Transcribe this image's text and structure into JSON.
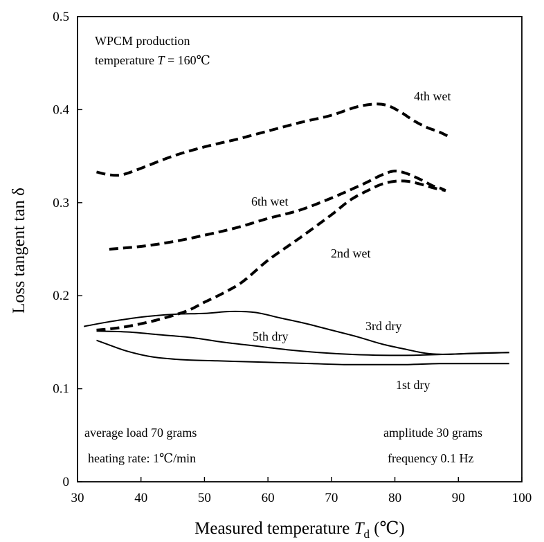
{
  "chart_data": {
    "type": "line",
    "xlabel": "Measured temperature",
    "xlabel_symbol": "T",
    "xlabel_subscript": "d",
    "xlabel_unit": "(℃)",
    "ylabel": "Loss tangent tan δ",
    "xlim": [
      30,
      100
    ],
    "ylim": [
      0,
      0.5
    ],
    "x_ticks": [
      "30",
      "40",
      "50",
      "60",
      "70",
      "80",
      "90",
      "100"
    ],
    "y_ticks": [
      "0",
      "0.1",
      "0.2",
      "0.3",
      "0.4",
      "0.5"
    ],
    "grid": false,
    "annotations": {
      "production_line1": "WPCM production",
      "production_line2_prefix": "temperature ",
      "production_line2_symbol": "T",
      "production_line2_suffix": " = 160℃",
      "load": "average load 70 grams",
      "heating": "heating rate: 1℃/min",
      "amplitude": "amplitude 30 grams",
      "frequency": "frequency 0.1 Hz"
    },
    "series": [
      {
        "name": "4th wet",
        "style": "dashed",
        "x": [
          33,
          35,
          37,
          40,
          45,
          50,
          55,
          60,
          65,
          70,
          74,
          77,
          79,
          81,
          83,
          85,
          87,
          88.5
        ],
        "y": [
          0.333,
          0.33,
          0.33,
          0.337,
          0.35,
          0.36,
          0.368,
          0.377,
          0.386,
          0.394,
          0.403,
          0.406,
          0.404,
          0.397,
          0.388,
          0.381,
          0.376,
          0.371
        ]
      },
      {
        "name": "6th wet",
        "style": "dashed",
        "x": [
          35,
          40,
          45,
          50,
          55,
          60,
          65,
          70,
          75,
          78,
          80,
          82,
          84,
          86,
          87,
          88
        ],
        "y": [
          0.25,
          0.253,
          0.258,
          0.265,
          0.273,
          0.283,
          0.292,
          0.305,
          0.32,
          0.33,
          0.334,
          0.331,
          0.325,
          0.318,
          0.316,
          0.313
        ]
      },
      {
        "name": "2nd wet",
        "style": "dashed",
        "x": [
          33,
          37,
          42,
          47,
          50,
          53,
          56,
          60,
          65,
          70,
          73,
          76,
          78,
          80,
          82,
          84,
          86,
          88
        ],
        "y": [
          0.163,
          0.166,
          0.173,
          0.183,
          0.193,
          0.203,
          0.215,
          0.238,
          0.262,
          0.287,
          0.303,
          0.314,
          0.32,
          0.323,
          0.323,
          0.32,
          0.316,
          0.313
        ]
      },
      {
        "name": "3rd dry",
        "style": "solid",
        "x": [
          31,
          35,
          40,
          45,
          50,
          54,
          58,
          62,
          66,
          70,
          74,
          78,
          82,
          85,
          88,
          92,
          98
        ],
        "y": [
          0.167,
          0.172,
          0.177,
          0.18,
          0.181,
          0.183,
          0.182,
          0.176,
          0.17,
          0.163,
          0.156,
          0.148,
          0.142,
          0.138,
          0.137,
          0.138,
          0.139
        ]
      },
      {
        "name": "5th dry",
        "style": "solid",
        "x": [
          33,
          38,
          43,
          48,
          53,
          58,
          63,
          68,
          73,
          78,
          83,
          88,
          93,
          98
        ],
        "y": [
          0.162,
          0.161,
          0.158,
          0.155,
          0.15,
          0.146,
          0.142,
          0.139,
          0.137,
          0.136,
          0.136,
          0.137,
          0.138,
          0.139
        ]
      },
      {
        "name": "1st dry",
        "style": "solid",
        "x": [
          33,
          35,
          38,
          42,
          47,
          52,
          57,
          62,
          67,
          72,
          77,
          82,
          87,
          92,
          98
        ],
        "y": [
          0.152,
          0.147,
          0.14,
          0.134,
          0.131,
          0.13,
          0.129,
          0.128,
          0.127,
          0.126,
          0.126,
          0.126,
          0.127,
          0.127,
          0.127
        ]
      }
    ]
  }
}
